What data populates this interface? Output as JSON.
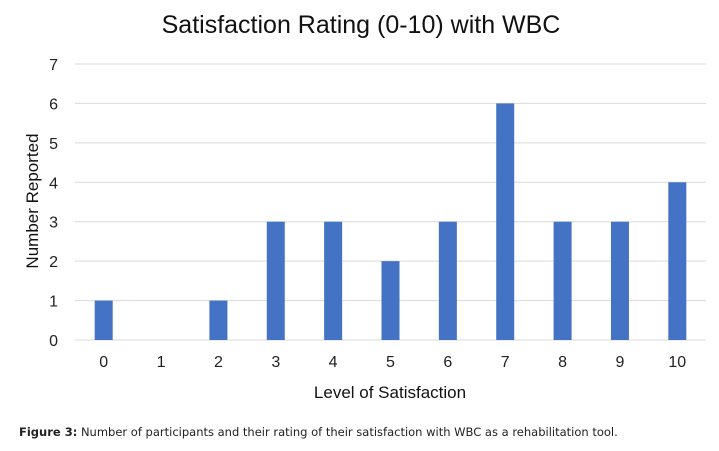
{
  "chart_data": {
    "type": "bar",
    "title": "Satisfaction Rating (0-10) with WBC",
    "xlabel": "Level of Satisfaction",
    "ylabel": "Number Reported",
    "categories": [
      "0",
      "1",
      "2",
      "3",
      "4",
      "5",
      "6",
      "7",
      "8",
      "9",
      "10"
    ],
    "values": [
      1,
      0,
      1,
      3,
      3,
      2,
      3,
      6,
      3,
      3,
      4
    ],
    "ylim": [
      0,
      7
    ],
    "yticks": [
      "0",
      "1",
      "2",
      "3",
      "4",
      "5",
      "6",
      "7"
    ],
    "grid": true,
    "bar_color": "#4472c4",
    "grid_color": "#d9d9d9"
  },
  "caption": {
    "label": "Figure 3:",
    "text": "Number of participants and their rating of their satisfaction with WBC as a rehabilitation tool."
  }
}
